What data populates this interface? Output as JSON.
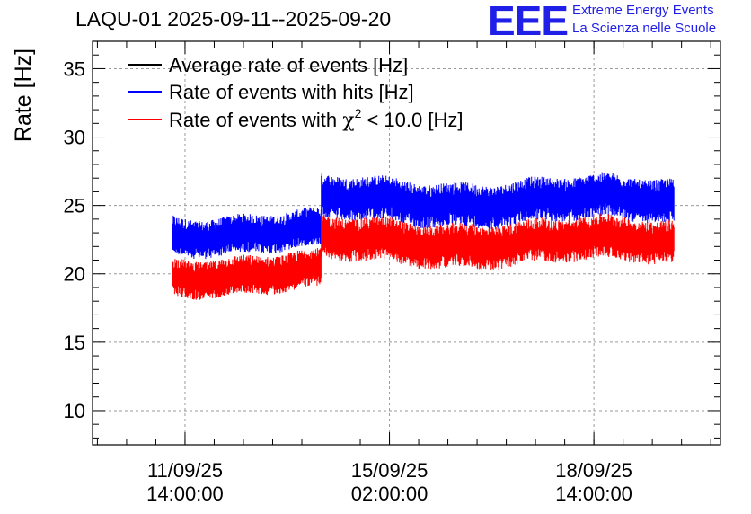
{
  "header": {
    "title": "LAQU-01 2025-09-11--2025-09-20",
    "logo_letters": "EEE",
    "logo_line1": "Extreme Energy Events",
    "logo_line2": "La Scienza nelle Scuole"
  },
  "colors": {
    "avg": "#000000",
    "hits": "#0000ff",
    "chi2": "#ff0000",
    "logo": "#1f1fe8"
  },
  "chart_data": {
    "type": "line",
    "ylabel": "Rate [Hz]",
    "ylim": [
      7.5,
      37
    ],
    "yticks": [
      10,
      15,
      20,
      25,
      30,
      35
    ],
    "xtick_labels": [
      [
        "11/09/25",
        "14:00:00"
      ],
      [
        "15/09/25",
        "02:00:00"
      ],
      [
        "18/09/25",
        "14:00:00"
      ]
    ],
    "grid": true,
    "legend": [
      {
        "label": "Average rate of events [Hz]",
        "color": "#000000"
      },
      {
        "label": "Rate of events with hits [Hz]",
        "color": "#0000ff"
      },
      {
        "label_prefix": "Rate of events with ",
        "label_symbol": "χ",
        "label_sup": "2",
        "label_suffix": " < 10.0 [Hz]",
        "color": "#ff0000"
      }
    ],
    "series": [
      {
        "name": "Rate of events with hits [Hz]",
        "color": "#0000ff",
        "segments": [
          {
            "x_start": "2025-09-11 09:00",
            "x_end": "2025-09-13 22:00",
            "center": 23.0,
            "spread": 1.4
          },
          {
            "x_start": "2025-09-13 22:00",
            "x_end": "2025-09-19 23:00",
            "center": 25.3,
            "spread": 1.6
          }
        ]
      },
      {
        "name": "Rate of events with χ2 < 10.0 [Hz]",
        "color": "#ff0000",
        "segments": [
          {
            "x_start": "2025-09-11 09:00",
            "x_end": "2025-09-13 22:00",
            "center": 20.0,
            "spread": 1.4
          },
          {
            "x_start": "2025-09-13 22:00",
            "x_end": "2025-09-19 23:00",
            "center": 22.3,
            "spread": 1.6
          }
        ]
      }
    ]
  }
}
